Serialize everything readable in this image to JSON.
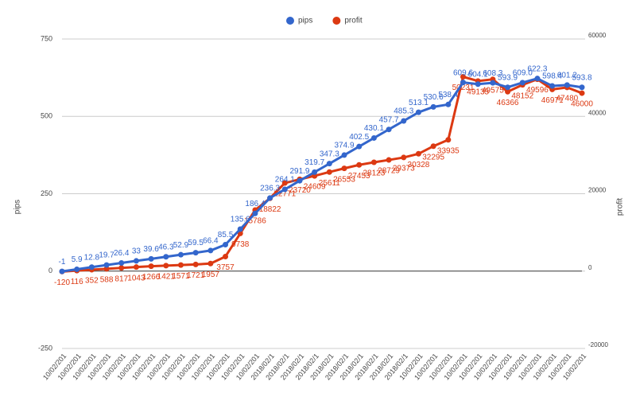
{
  "chart_data": {
    "type": "line",
    "categories": [
      "10/02/201",
      "10/02/201",
      "10/02/201",
      "10/02/201",
      "10/02/201",
      "10/02/201",
      "10/02/201",
      "10/02/201",
      "10/02/201",
      "10/02/201",
      "10/02/201",
      "10/02/201",
      "10/02/201",
      "10/02/201",
      "2018/02/1",
      "2018/02/1",
      "2018/02/1",
      "2018/02/1",
      "2018/02/1",
      "2018/02/1",
      "2018/02/1",
      "2018/02/1",
      "2018/02/1",
      "2018/02/1",
      "10/02/201",
      "10/02/201",
      "10/02/201",
      "10/02/201",
      "10/02/201",
      "10/02/201",
      "10/02/201",
      "10/02/201",
      "10/02/201",
      "10/02/201",
      "10/02/201",
      "10/02/201"
    ],
    "series": [
      {
        "name": "pips",
        "color": "#3366cc",
        "axis": "y",
        "values": [
          -1,
          5.9,
          12.8,
          19.7,
          26.4,
          33,
          39.6,
          46.3,
          52.9,
          59.5,
          66.4,
          85.5,
          135.6,
          186.4,
          236.3,
          264.1,
          291.9,
          319.7,
          347.3,
          374.9,
          402.5,
          430.1,
          457.7,
          485.3,
          513.1,
          530.6,
          538.4,
          609.6,
          604.1,
          608.3,
          593.9,
          609.0,
          622.3,
          598.4,
          601.2,
          593.8
        ],
        "value_labels": [
          "-1",
          "5.9",
          "12.8",
          "19.7",
          "26.4",
          "33",
          "39.6",
          "46.3",
          "52.9",
          "59.5",
          "66.4",
          "85.5",
          "135.6",
          "186.4",
          "236.3",
          "264.1",
          "291.9",
          "319.7",
          "347.3",
          "374.9",
          "402.5",
          "430.1",
          "457.7",
          "485.3",
          "513.1",
          "530.6",
          "538.4",
          "609.6",
          "604.1",
          "608.3",
          "593.9",
          "609.0",
          "622.3",
          "598.4",
          "601.2",
          "593.8"
        ]
      },
      {
        "name": "profit",
        "color": "#dc3912",
        "axis": "y2",
        "values": [
          -120,
          116,
          352,
          588,
          817,
          1043,
          1266,
          1421,
          1571,
          1721,
          1957,
          3757,
          9738,
          15786,
          18822,
          22771,
          23720,
          24609,
          25611,
          26553,
          27453,
          28123,
          28729,
          29373,
          30328,
          32295,
          33935,
          50231,
          49135,
          49575,
          46366,
          48152,
          49596,
          46971,
          47480,
          46000
        ]
      }
    ],
    "ylabel": "pips",
    "y2label": "profit",
    "ylim": [
      -250,
      750
    ],
    "yticks": [
      -250,
      0,
      250,
      500,
      750
    ],
    "y2lim": [
      -20000,
      60000
    ],
    "y2ticks": [
      -20000,
      0,
      20000,
      40000,
      60000
    ],
    "legend": "top",
    "grid": true
  }
}
